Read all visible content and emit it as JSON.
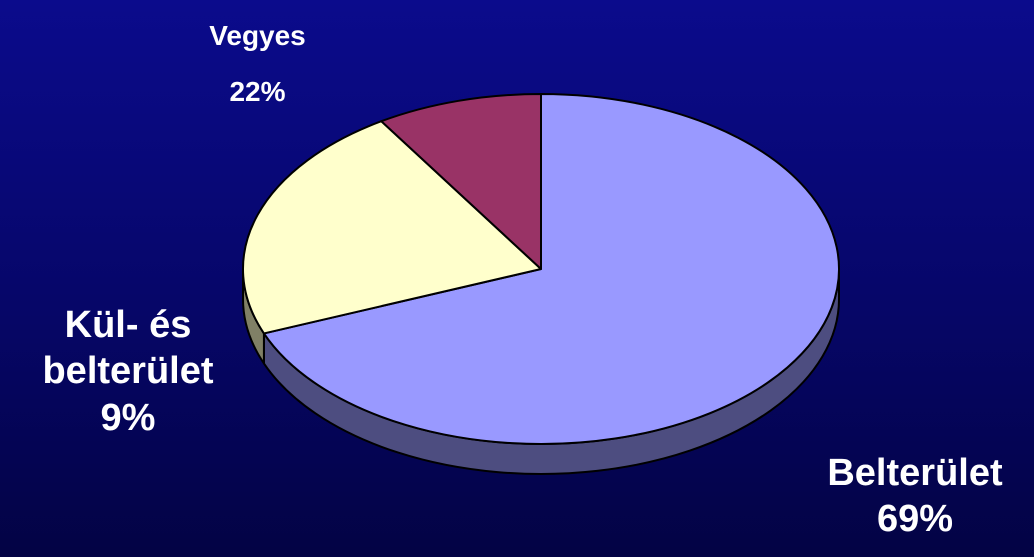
{
  "chart_data": {
    "type": "pie",
    "style": "3d",
    "slices": [
      {
        "label": "Belterület",
        "value": 69,
        "value_label": "69%",
        "color": "#9999ff",
        "side_color": "#4d4d80"
      },
      {
        "label": "Vegyes",
        "value": 22,
        "value_label": "22%",
        "color": "#ffffcc",
        "side_color": "#808066"
      },
      {
        "label": "Kül- és belterület",
        "value": 9,
        "value_label": "9%",
        "color": "#993366",
        "side_color": "#4d1a33"
      }
    ]
  },
  "labels": {
    "vegyes": {
      "name": "Vegyes",
      "pct": "22%"
    },
    "kul": {
      "line1": "Kül- és",
      "line2": "belterület",
      "pct": "9%"
    },
    "bel": {
      "name": "Belterület",
      "pct": "69%"
    }
  },
  "colors": {
    "background": "#06066e",
    "text": "#ffffff",
    "outline": "#000000"
  }
}
